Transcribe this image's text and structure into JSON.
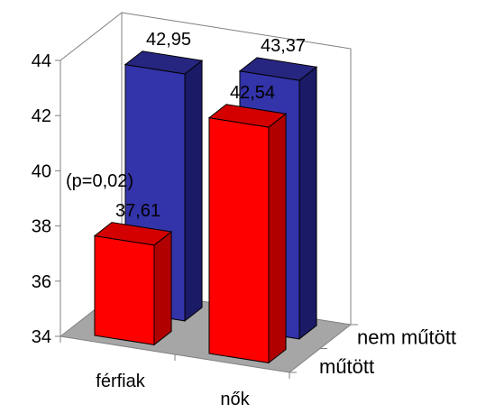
{
  "chart_data": {
    "type": "bar",
    "variant": "3d-clustered-depth",
    "categories": [
      "férfiak",
      "nők"
    ],
    "series": [
      {
        "name": "műtött",
        "values": [
          37.61,
          42.54
        ],
        "color": "#ff0000",
        "side_color": "#b00000",
        "top_color": "#d40000"
      },
      {
        "name": "nem műtött",
        "values": [
          42.95,
          43.37
        ],
        "color": "#3333aa",
        "side_color": "#1a1a66",
        "top_color": "#262680"
      }
    ],
    "value_labels": [
      [
        "37,61",
        "42,54"
      ],
      [
        "42,95",
        "43,37"
      ]
    ],
    "annotation": "(p=0,02)",
    "ylim": [
      34,
      44
    ],
    "yticks": [
      "34",
      "36",
      "38",
      "40",
      "42",
      "44"
    ],
    "floor_color": "#a6a6a6",
    "grid": false
  }
}
